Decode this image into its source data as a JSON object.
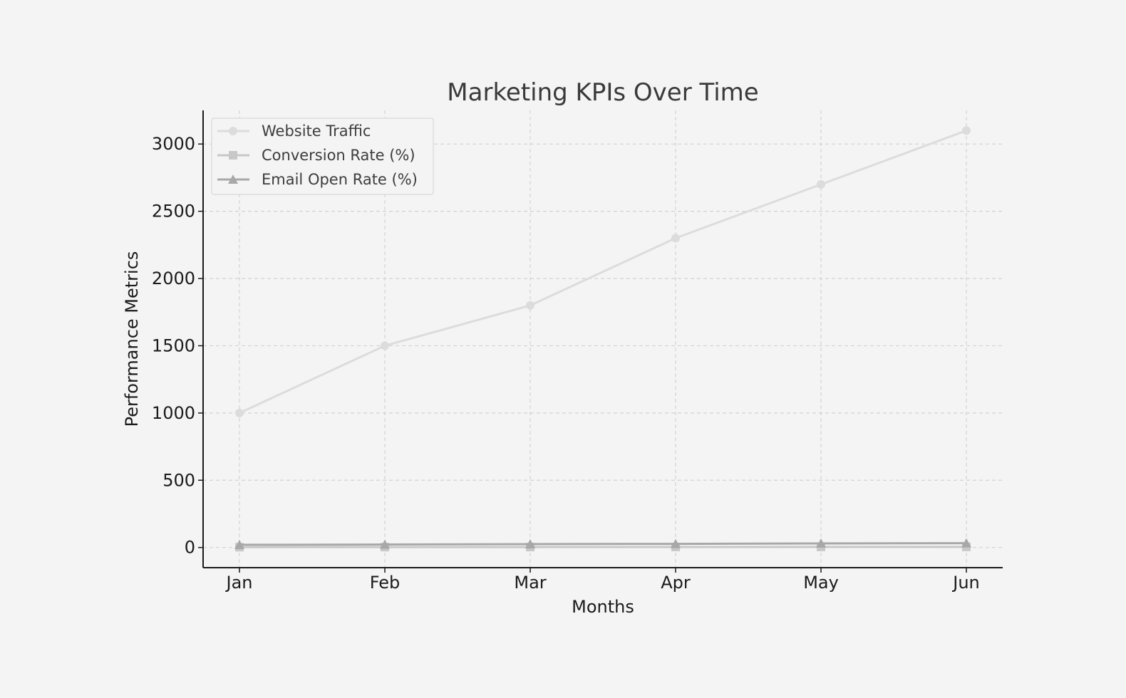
{
  "chart_data": {
    "type": "line",
    "title": "Marketing KPIs Over Time",
    "xlabel": "Months",
    "ylabel": "Performance Metrics",
    "categories": [
      "Jan",
      "Feb",
      "Mar",
      "Apr",
      "May",
      "Jun"
    ],
    "ylim": [
      -150,
      3250
    ],
    "yticks": [
      0,
      500,
      1000,
      1500,
      2000,
      2500,
      3000
    ],
    "grid": true,
    "legend_position": "top-left",
    "series": [
      {
        "name": "Website Traffic",
        "values": [
          1000,
          1500,
          1800,
          2300,
          2700,
          3100
        ],
        "color": "#dcdcdc",
        "marker": "circle"
      },
      {
        "name": "Conversion Rate (%)",
        "values": [
          2.5,
          3.0,
          3.2,
          3.8,
          4.0,
          4.5
        ],
        "color": "#c8c8c8",
        "marker": "square"
      },
      {
        "name": "Email Open Rate (%)",
        "values": [
          20,
          22,
          25,
          27,
          30,
          32
        ],
        "color": "#a8a8a8",
        "marker": "triangle"
      }
    ]
  }
}
